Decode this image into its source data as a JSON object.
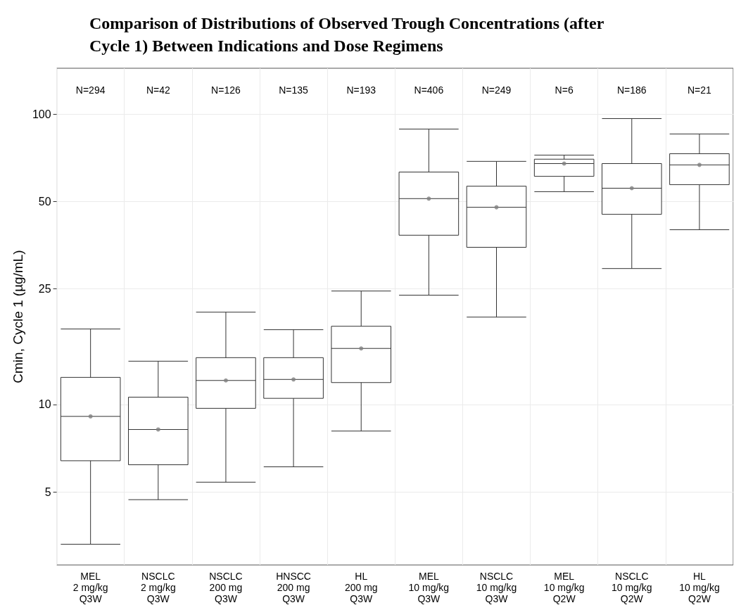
{
  "chart_data": {
    "type": "box",
    "title": "Comparison of Distributions of Observed Trough Concentrations (after\nCycle 1) Between Indications and Dose Regimens",
    "ylabel": "Cmin, Cycle 1 (µg/mL)",
    "categories": [
      "MEL\n2 mg/kg\nQ3W",
      "NSCLC\n2 mg/kg\nQ3W",
      "NSCLC\n200 mg\nQ3W",
      "HNSCC\n200 mg\nQ3W",
      "HL\n200 mg\nQ3W",
      "MEL\n10 mg/kg\nQ3W",
      "NSCLC\n10 mg/kg\nQ3W",
      "MEL\n10 mg/kg\nQ2W",
      "NSCLC\n10 mg/kg\nQ2W",
      "HL\n10 mg/kg\nQ2W"
    ],
    "color": "#333333",
    "boxes": [
      {
        "low": 3.3,
        "q1": 6.4,
        "median": 9.1,
        "q3": 12.4,
        "high": 18.2,
        "mean": 9.1
      },
      {
        "low": 4.7,
        "q1": 6.2,
        "median": 8.2,
        "q3": 10.6,
        "high": 14.1,
        "mean": 8.2
      },
      {
        "low": 5.4,
        "q1": 9.7,
        "median": 12.1,
        "q3": 14.5,
        "high": 20.8,
        "mean": 12.1
      },
      {
        "low": 6.1,
        "q1": 10.5,
        "median": 12.2,
        "q3": 14.5,
        "high": 18.1,
        "mean": 12.2
      },
      {
        "low": 8.1,
        "q1": 11.9,
        "median": 15.6,
        "q3": 18.6,
        "high": 24.6,
        "mean": 15.6
      },
      {
        "low": 23.8,
        "q1": 38.3,
        "median": 51.2,
        "q3": 63.2,
        "high": 88.9,
        "mean": 51.2
      },
      {
        "low": 20,
        "q1": 34.8,
        "median": 47.8,
        "q3": 56.5,
        "high": 68.8,
        "mean": 47.8
      },
      {
        "low": 54.1,
        "q1": 61.1,
        "median": 67.6,
        "q3": 70,
        "high": 72.3,
        "mean": 67.6
      },
      {
        "low": 29.4,
        "q1": 45.2,
        "median": 55.6,
        "q3": 67.6,
        "high": 96.6,
        "mean": 55.6
      },
      {
        "low": 40,
        "q1": 57.2,
        "median": 66.9,
        "q3": 73.1,
        "high": 85.5,
        "mean": 66.9
      }
    ],
    "log": true,
    "ylim": [
      2.8,
      144
    ],
    "yticks": [
      5,
      10,
      25,
      50,
      100
    ],
    "grid": true,
    "annotations": [
      "N=294",
      "N=42",
      "N=126",
      "N=135",
      "N=193",
      "N=406",
      "N=249",
      "N=6",
      "N=186",
      "N=21"
    ]
  }
}
